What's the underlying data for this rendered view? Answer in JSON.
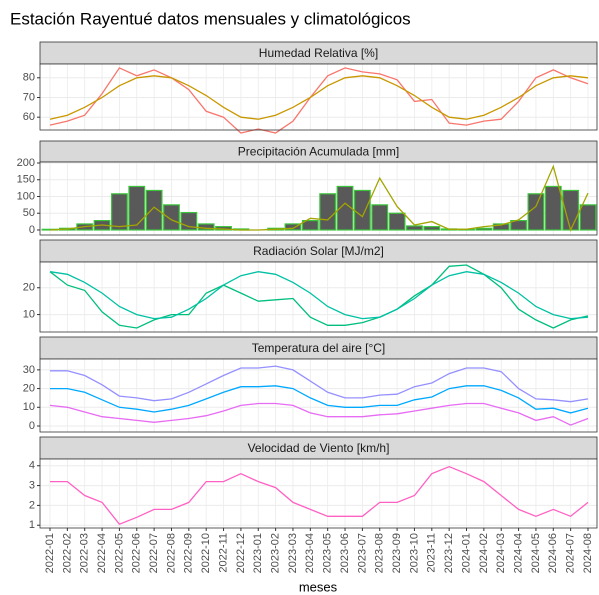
{
  "title": "Estación Rayentué datos mensuales y climatológicos",
  "x_label": "meses",
  "chart_data": [
    {
      "type": "line",
      "title": "Humedad Relativa [%]",
      "ylim": [
        53.5,
        87
      ],
      "yticks": [
        60,
        70,
        80
      ],
      "grid": true,
      "series": [
        {
          "color": "#F8766D",
          "values": [
            56,
            58,
            61,
            72,
            85,
            81,
            84,
            80,
            74,
            63,
            60,
            52,
            54,
            52,
            58,
            70,
            81,
            85,
            83,
            82,
            79,
            68,
            69,
            57,
            56,
            58,
            59,
            68,
            80,
            84,
            80,
            77
          ]
        },
        {
          "color": "#C99800",
          "values": [
            59,
            61,
            65,
            70,
            76,
            80,
            81,
            80,
            76,
            71,
            65,
            60,
            59,
            61,
            65,
            70,
            76,
            80,
            81,
            80,
            76,
            71,
            65,
            60,
            59,
            61,
            65,
            70,
            76,
            80,
            81,
            80
          ]
        }
      ]
    },
    {
      "type": "combo",
      "title": "Precipitación Acumulada [mm]",
      "ylim": [
        -15,
        203
      ],
      "yticks": [
        0,
        50,
        100,
        150,
        200
      ],
      "grid": true,
      "series": [
        {
          "type": "bar",
          "color": "#595959",
          "border": "#3BC43B",
          "values": [
            2,
            5,
            18,
            28,
            108,
            130,
            118,
            75,
            52,
            18,
            10,
            3,
            0,
            5,
            18,
            28,
            108,
            130,
            118,
            75,
            50,
            12,
            10,
            3,
            2,
            5,
            18,
            28,
            108,
            130,
            118,
            75
          ]
        },
        {
          "type": "line",
          "color": "#A3A500",
          "values": [
            0,
            3,
            10,
            15,
            10,
            15,
            68,
            30,
            10,
            5,
            3,
            0,
            0,
            2,
            5,
            35,
            30,
            80,
            40,
            155,
            70,
            15,
            25,
            2,
            2,
            10,
            15,
            30,
            70,
            190,
            0,
            110
          ]
        }
      ]
    },
    {
      "type": "line",
      "title": "Radiación Solar [MJ/m2]",
      "ylim": [
        3.5,
        29.6
      ],
      "yticks": [
        10,
        20
      ],
      "grid": true,
      "series": [
        {
          "color": "#00BF7D",
          "values": [
            26,
            21,
            19,
            11,
            6,
            5,
            8,
            10,
            10,
            18,
            21,
            18,
            15,
            15.5,
            16,
            9,
            6,
            6,
            7,
            9,
            12,
            17,
            21,
            28,
            28.5,
            25,
            20,
            12,
            8,
            5,
            8,
            9.5
          ]
        },
        {
          "color": "#00C1A3",
          "values": [
            26,
            25,
            22,
            18,
            13,
            10,
            8.5,
            9,
            12,
            16,
            21,
            24.5,
            26,
            25,
            22,
            18,
            13,
            10,
            8.5,
            9,
            12,
            16,
            21,
            24.5,
            26,
            25,
            22,
            18,
            13,
            10,
            8.5,
            9
          ]
        }
      ]
    },
    {
      "type": "line",
      "title": "Temperatura del aire [°C]",
      "ylim": [
        -3.2,
        35.8
      ],
      "yticks": [
        0,
        10,
        20,
        30
      ],
      "grid": true,
      "series": [
        {
          "color": "#9590FF",
          "values": [
            29.5,
            29.5,
            27,
            22,
            16,
            15,
            13.5,
            14.5,
            18,
            22.5,
            27,
            31,
            31,
            32,
            30,
            24,
            18,
            15,
            15,
            16.5,
            17,
            21,
            23,
            28,
            31,
            31,
            29,
            20,
            14.5,
            14,
            13,
            14.5
          ]
        },
        {
          "color": "#00A9FF",
          "values": [
            20,
            20,
            18,
            14,
            10,
            9,
            7.5,
            9,
            11,
            14.5,
            18,
            21,
            21,
            21.5,
            20,
            15,
            11,
            10,
            10,
            11,
            11,
            14,
            15.5,
            20,
            21.5,
            21.5,
            19,
            15,
            9,
            9.5,
            7,
            9.5
          ]
        },
        {
          "color": "#E76BF3",
          "values": [
            11,
            10,
            7.5,
            5,
            4,
            3,
            2,
            3,
            4,
            5.5,
            8,
            11,
            12,
            12,
            11,
            7,
            5,
            5,
            5,
            6,
            6.5,
            8,
            9.5,
            11,
            12,
            12,
            9.5,
            7,
            3,
            5,
            0.5,
            4
          ]
        }
      ]
    },
    {
      "type": "line",
      "title": "Velocidad de Viento [km/h]",
      "ylim": [
        0.86,
        4.34
      ],
      "yticks": [
        1,
        2,
        3,
        4
      ],
      "grid": true,
      "categories": [
        "2022-01",
        "2022-02",
        "2022-03",
        "2022-04",
        "2022-05",
        "2022-06",
        "2022-07",
        "2022-08",
        "2022-09",
        "2022-10",
        "2022-11",
        "2022-12",
        "2023-01",
        "2023-02",
        "2023-03",
        "2023-04",
        "2023-05",
        "2023-06",
        "2023-07",
        "2023-08",
        "2023-09",
        "2023-10",
        "2023-11",
        "2023-12",
        "2024-01",
        "2024-02",
        "2024-03",
        "2024-04",
        "2024-05",
        "2024-06",
        "2024-07",
        "2024-08"
      ],
      "series": [
        {
          "color": "#FF61C3",
          "values": [
            3.2,
            3.2,
            2.5,
            2.15,
            1.05,
            1.4,
            1.8,
            1.8,
            2.15,
            3.2,
            3.2,
            3.6,
            3.2,
            2.9,
            2.15,
            1.8,
            1.45,
            1.45,
            1.45,
            2.15,
            2.15,
            2.5,
            3.6,
            3.95,
            3.6,
            3.2,
            2.5,
            1.8,
            1.45,
            1.8,
            1.45,
            2.15
          ]
        }
      ]
    }
  ]
}
